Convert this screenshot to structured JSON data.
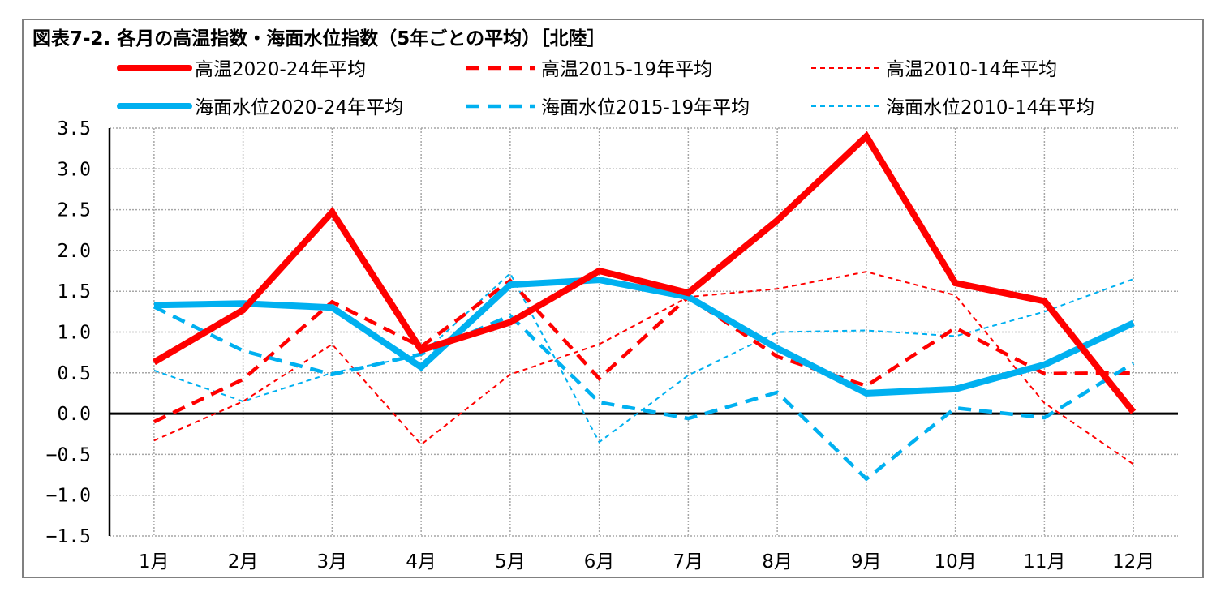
{
  "chart_data": {
    "type": "line",
    "title": "図表7-2. 各月の高温指数・海面水位指数（5年ごとの平均）［北陸］",
    "xlabel": "",
    "ylabel": "",
    "ylim": [
      -1.5,
      3.5
    ],
    "yticks": [
      "3.5",
      "3.0",
      "2.5",
      "2.0",
      "1.5",
      "1.0",
      "0.5",
      "0.0",
      "-0.5",
      "-1.0",
      "-1.5"
    ],
    "categories": [
      "1月",
      "2月",
      "3月",
      "4月",
      "5月",
      "6月",
      "7月",
      "8月",
      "9月",
      "10月",
      "11月",
      "12月"
    ],
    "grid": true,
    "legend_position": "top",
    "series": [
      {
        "name": "高温2020-24年平均",
        "color": "#ff0000",
        "style": "solid-thick",
        "values": [
          0.63,
          1.27,
          2.47,
          0.78,
          1.12,
          1.75,
          1.48,
          2.37,
          3.4,
          1.6,
          1.38,
          0.02
        ]
      },
      {
        "name": "高温2015-19年平均",
        "color": "#ff0000",
        "style": "dash-medium",
        "values": [
          -0.1,
          0.42,
          1.37,
          0.82,
          1.63,
          0.43,
          1.43,
          0.7,
          0.34,
          1.05,
          0.49,
          0.5
        ]
      },
      {
        "name": "高温2010-14年平均",
        "color": "#ff0000",
        "style": "dot-thin",
        "values": [
          -0.33,
          0.15,
          0.85,
          -0.38,
          0.48,
          0.85,
          1.43,
          1.53,
          1.74,
          1.45,
          0.13,
          -0.62
        ]
      },
      {
        "name": "海面水位2020-24年平均",
        "color": "#00b0f0",
        "style": "solid-thick",
        "values": [
          1.33,
          1.35,
          1.3,
          0.57,
          1.58,
          1.64,
          1.43,
          0.8,
          0.25,
          0.3,
          0.6,
          1.11
        ]
      },
      {
        "name": "海面水位2015-19年平均",
        "color": "#00b0f0",
        "style": "dash-medium",
        "values": [
          1.31,
          0.77,
          0.48,
          0.73,
          1.2,
          0.14,
          -0.06,
          0.26,
          -0.8,
          0.07,
          -0.05,
          0.62
        ]
      },
      {
        "name": "海面水位2010-14年平均",
        "color": "#00b0f0",
        "style": "dot-thin",
        "values": [
          0.53,
          0.15,
          0.5,
          0.72,
          1.72,
          -0.35,
          0.47,
          1.0,
          1.02,
          0.95,
          1.25,
          1.65
        ]
      }
    ]
  }
}
